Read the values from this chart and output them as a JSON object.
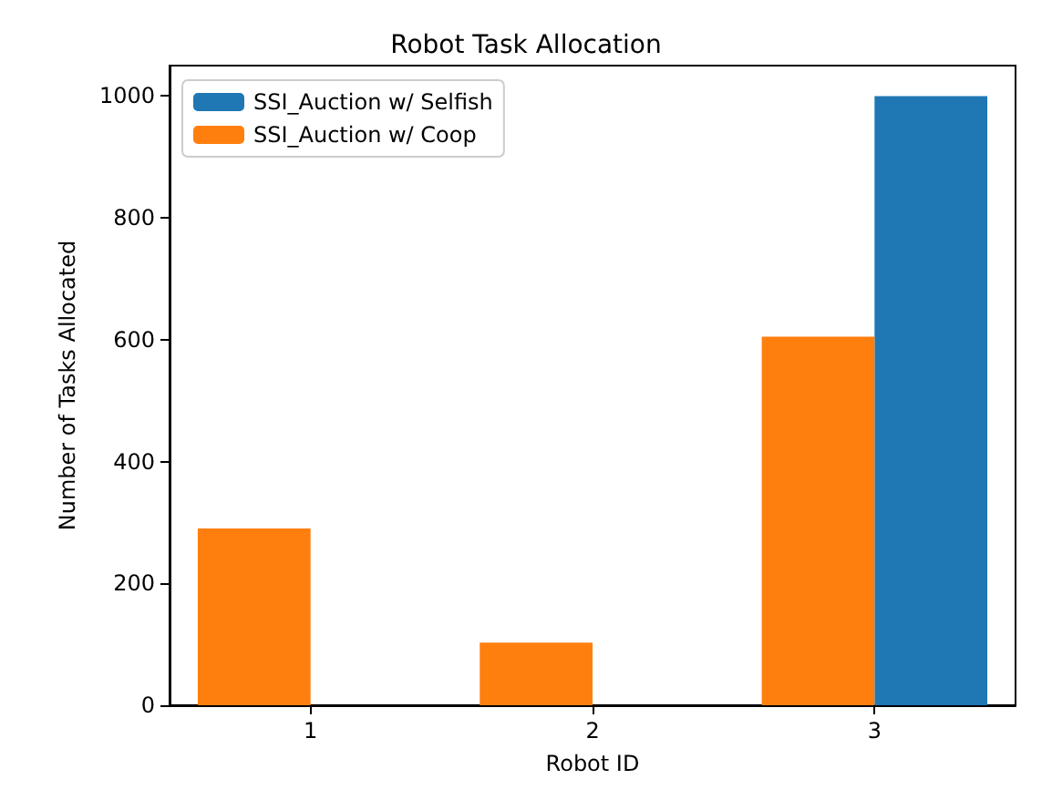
{
  "chart_data": {
    "type": "bar",
    "title": "Robot Task Allocation",
    "xlabel": "Robot ID",
    "ylabel": "Number of Tasks Allocated",
    "categories": [
      "1",
      "2",
      "3"
    ],
    "series": [
      {
        "name": "SSI_Auction w/ Selfish",
        "color": "#1f77b4",
        "values": [
          0,
          0,
          1000
        ]
      },
      {
        "name": "SSI_Auction w/ Coop",
        "color": "#ff7f0e",
        "values": [
          290,
          103,
          605
        ]
      }
    ],
    "ylim": [
      0,
      1050
    ],
    "yticks": [
      0,
      200,
      400,
      600,
      800,
      1000
    ],
    "grid": false,
    "legend": "top left"
  }
}
